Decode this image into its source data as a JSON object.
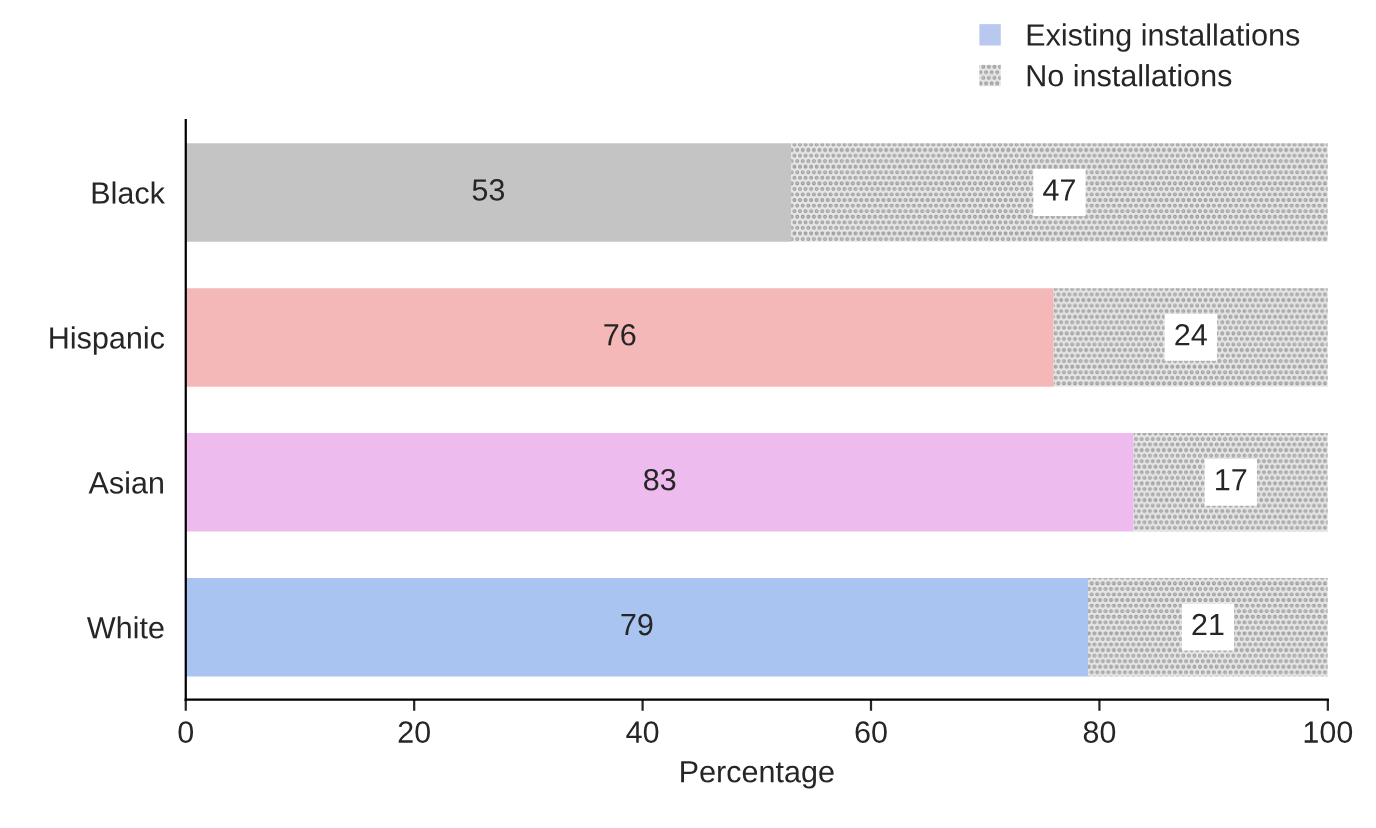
{
  "chart_data": {
    "type": "bar",
    "orientation": "horizontal",
    "stacked": true,
    "xlabel": "Percentage",
    "categories": [
      "Black",
      "Hispanic",
      "Asian",
      "White"
    ],
    "series": [
      {
        "name": "Existing installations",
        "color": "#b9c8ee",
        "colors": [
          "#c4c4c4",
          "#f4b8b8",
          "#eebbee",
          "#a9c4f0"
        ],
        "values": [
          53,
          76,
          83,
          79
        ]
      },
      {
        "name": "No installations",
        "color": "#e6e6e6",
        "values": [
          47,
          24,
          17,
          21
        ]
      }
    ],
    "xlim": [
      0,
      100
    ],
    "xticks": [
      0,
      20,
      40,
      60,
      80,
      100
    ],
    "data_labels": true,
    "grid": false,
    "legend": "top right"
  }
}
